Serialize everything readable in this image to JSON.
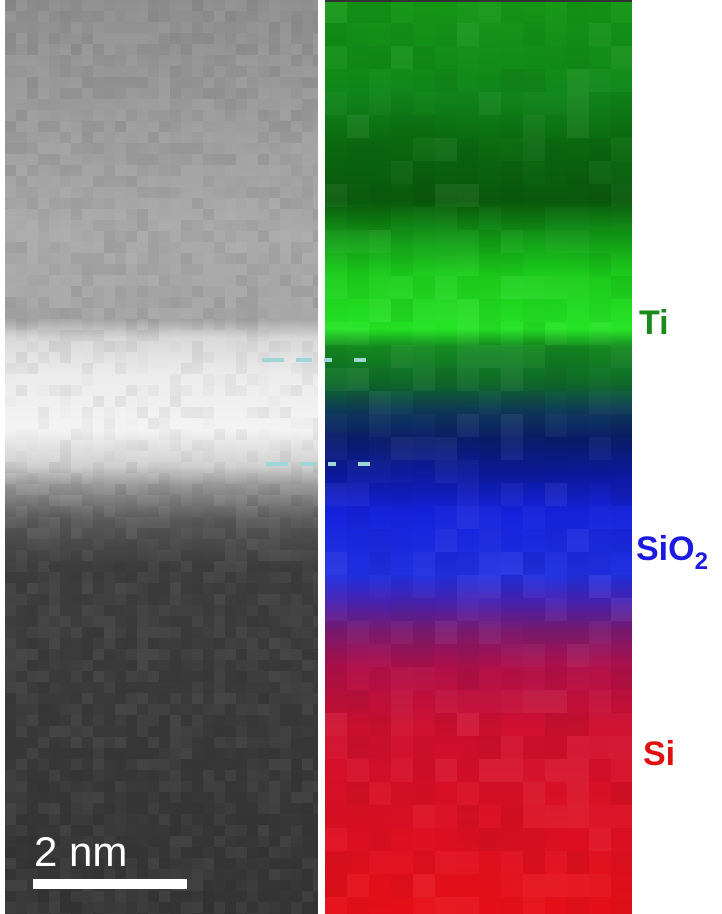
{
  "scale_bar": {
    "label": "2 nm"
  },
  "element_labels": [
    {
      "text": "Ti"
    },
    {
      "text": "SiO",
      "subscript": "2"
    },
    {
      "text": "Si"
    }
  ]
}
